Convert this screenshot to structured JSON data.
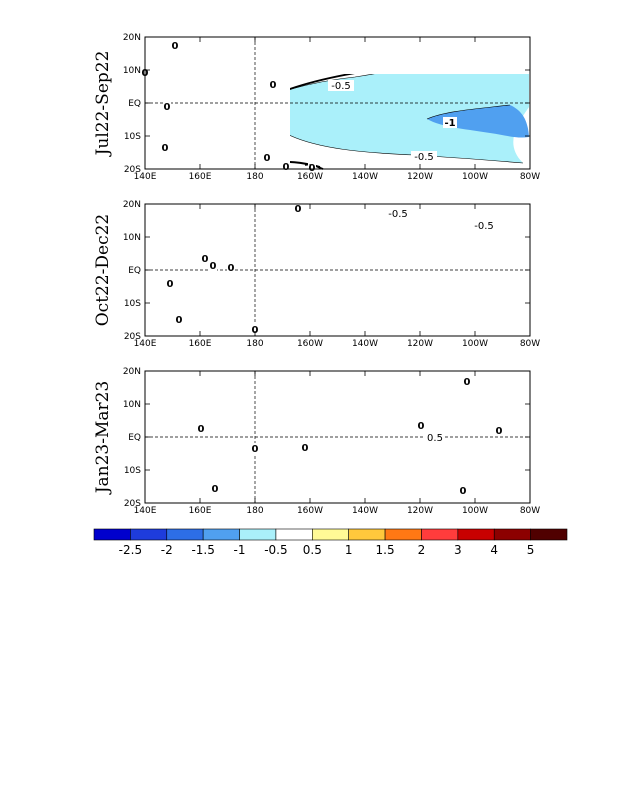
{
  "chart_data": {
    "type": "heatmap",
    "x_ticks": [
      "140E",
      "160E",
      "180",
      "160W",
      "140W",
      "120W",
      "100W",
      "80W"
    ],
    "y_ticks": [
      "20N",
      "10N",
      "EQ",
      "10S",
      "20S"
    ],
    "panels": [
      {
        "label": "Jul22-Sep22",
        "contour_labels": [
          "0",
          "0",
          "0",
          "0",
          "0",
          "0",
          "0",
          "0",
          "-0.5",
          "-1",
          "-0.5"
        ],
        "shaded_levels": [
          -0.5,
          -1
        ]
      },
      {
        "label": "Oct22-Dec22",
        "contour_labels": [
          "0",
          "0",
          "0",
          "0",
          "0",
          "0",
          "0",
          "-0.5",
          "-0.5"
        ],
        "shaded_levels": [
          -0.5
        ]
      },
      {
        "label": "Jan23-Mar23",
        "contour_labels": [
          "0",
          "0",
          "0",
          "0",
          "0",
          "0",
          "0",
          "0",
          "0.5"
        ],
        "shaded_levels": [
          0.5
        ]
      }
    ],
    "colorbar": {
      "labels": [
        "-2.5",
        "-2",
        "-1.5",
        "-1",
        "-0.5",
        "0.5",
        "1",
        "1.5",
        "2",
        "3",
        "4",
        "5"
      ],
      "colors": [
        "#0000cd",
        "#1e3cdc",
        "#2d6ee6",
        "#50a0f0",
        "#aaf0fa",
        "#ffffff",
        "#fffa96",
        "#ffc83c",
        "#ff7814",
        "#ff3c3c",
        "#c80000",
        "#8c0000",
        "#500000"
      ]
    }
  }
}
